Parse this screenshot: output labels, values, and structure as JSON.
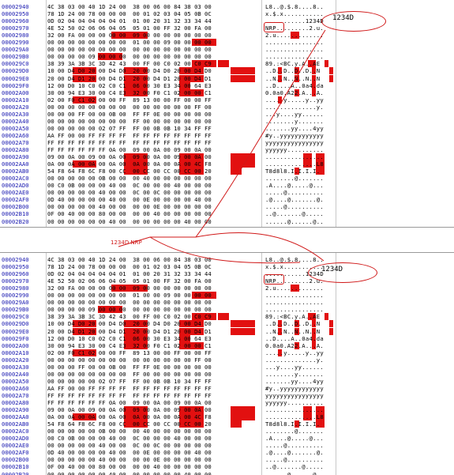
{
  "annotations": {
    "ellipse_text": "1234D",
    "box_text": "NRP",
    "middle_label": "1234D NRP"
  },
  "colors": {
    "highlight": "#e21010",
    "address": "#1a1ab0",
    "annotation": "#d01818"
  },
  "panels": [
    {
      "rows": [
        {
          "addr": "00002940",
          "hex": "4C 38 03 00 40 1D 24 00  38 00 06 00 84 38 03 00",
          "ascii": "L8..@.$.8....8.."
        },
        {
          "addr": "00002950",
          "hex": "78 1D 24 00 78 00 00 00  00 01 02 03 04 05 0B 0C",
          "ascii": "x.$.x..........."
        },
        {
          "addr": "00002960",
          "hex": "0D 02 04 04 04 04 04 01  01 00 20 31 32 33 34 44",
          "ascii": "...........1234D"
        },
        {
          "addr": "00002970",
          "hex": "4E 52 50 02 06 06 04 05  05 01 00 FF 32 00 FA 00",
          "ascii": "NRP.........2.u."
        },
        {
          "addr": "00002980",
          "hex": "32 00 FA 00 00 00 00 00  09 00 00 00 00 00 00 00",
          "ascii": "2.u............."
        },
        {
          "addr": "00002990",
          "hex": "00 00 00 00 00 00 00 00  01 00 00 09 00 00 00 00",
          "ascii": "................"
        },
        {
          "addr": "000029A0",
          "hex": "00 00 00 00 00 00 00 00  00 00 00 00 00 00 00 00",
          "ascii": "................"
        },
        {
          "addr": "000029B0",
          "hex": "00 00 00 00 09 00 00 00  00 00 00 00 00 00 00 00",
          "ascii": "................"
        },
        {
          "addr": "000029C0",
          "hex": "38 39 3A 3B 3C 3D 42 43  00 FF 00 C0 02 00 C0 C9",
          "ascii": "89.:<BC.y.A..AE"
        },
        {
          "addr": "000029D0",
          "hex": "10 00 D4 D0 20 00 D4 D0  20 00 D4 D0 20 00 D4 D0",
          "ascii": "..D..D..D..D..N"
        },
        {
          "addr": "000029E0",
          "hex": "20 00 D4 D1 20 00 D4 D1  20 00 D4 D1 20 00 D4 D1",
          "ascii": "..N..N..N..N..N"
        },
        {
          "addr": "000029F0",
          "hex": "12 00 D0 10 C0 02 C0 C1  06 00 30 E3 34 00 64 E3",
          "ascii": "..D....A..0a4.da"
        },
        {
          "addr": "00002A00",
          "hex": "30 00 94 E3 30 00 C4 E3  32 00 F0 C1 02 00 00 C1",
          "ascii": "0.0a0.A22.A...A."
        },
        {
          "addr": "00002A10",
          "hex": "02 00 F0 C1 02 00 00 FF  89 13 00 00 FF 00 00 FF",
          "ascii": ".....y.....y..yy"
        },
        {
          "addr": "00002A20",
          "hex": "00 00 00 00 00 00 00 00  00 00 00 00 00 00 FF 00",
          "ascii": "..............y."
        },
        {
          "addr": "00002A30",
          "hex": "00 00 00 FF 00 00 0B 00  FF FF 0E 00 00 00 00 00",
          "ascii": "...y....yy......"
        },
        {
          "addr": "00002A40",
          "hex": "00 00 00 00 00 00 00 00  FF 00 00 00 00 00 00 00",
          "ascii": "........y......."
        },
        {
          "addr": "00002A50",
          "hex": "00 00 00 00 00 02 07 FF  FF 00 0B 0B 10 34 FF FF",
          "ascii": ".......yy....4yy"
        },
        {
          "addr": "00002A60",
          "hex": "AA FF 00 00 FF FF FF FF  FF FF FF FF FF FF FF FF",
          "ascii": "#y..yyyyyyyyyyyy"
        },
        {
          "addr": "00002A70",
          "hex": "FF FF FF FF FF FF FF FF  FF FF FF FF FF FF FF FF",
          "ascii": "yyyyyyyyyyyyyyyy"
        },
        {
          "addr": "00002A80",
          "hex": "FF FF FF FF FF FF 0A 00  09 00 0A 00 09 00 0A 00",
          "ascii": "yyyyyy.........."
        },
        {
          "addr": "00002A90",
          "hex": "09 00 0A 00 09 00 0A 00  09 00 0A 00 09 00 0A 00",
          "ascii": "................"
        },
        {
          "addr": "00002AA0",
          "hex": "0A 00 0A 00 0A 00 0A 00  0A 00 0A 00 0A 00 4C F8",
          "ascii": "..............L8"
        },
        {
          "addr": "00002AB0",
          "hex": "54 F8 64 F8 6C F8 00 CC  00 CC 00 CC 00 CC 00 20",
          "ascii": "T8d8l8.I.I.I.I. "
        },
        {
          "addr": "00002AC0",
          "hex": "00 00 00 00 00 0B 00 00  00 40 00 00 00 00 00 00",
          "ascii": "........@......."
        },
        {
          "addr": "00002AD0",
          "hex": "00 C0 0B 00 00 00 40 00  0C 00 00 00 40 00 00 00",
          "ascii": ".A....@.....@..."
        },
        {
          "addr": "00002AE0",
          "hex": "00 00 00 00 00 40 00 00  0C 00 0C 00 00 00 00 00",
          "ascii": ".....@.........."
        },
        {
          "addr": "00002AF0",
          "hex": "0D 40 00 00 00 00 40 00  00 0E 00 00 00 00 40 00",
          "ascii": ".@....@.......@."
        },
        {
          "addr": "00002B00",
          "hex": "00 00 00 00 00 40 00 00  00 00 0E 00 00 00 00 00",
          "ascii": ".....@.........."
        },
        {
          "addr": "00002B10",
          "hex": "0F 00 40 00 00 80 00 00  00 00 40 00 00 00 00 00",
          "ascii": "..@.......@....."
        },
        {
          "addr": "00002B20",
          "hex": "00 00 00 00 00 00 40 00  00 00 00 00 00 40 00 00",
          "ascii": "......@......@.."
        }
      ]
    },
    {
      "rows": [
        {
          "addr": "00002940",
          "hex": "4C 38 03 00 40 1D 24 00  38 00 06 00 84 38 03 00",
          "ascii": "L8..@.$.8....8.."
        },
        {
          "addr": "00002950",
          "hex": "78 1D 24 00 78 00 00 00  00 01 02 03 04 05 0B 0C",
          "ascii": "x.$.x..........."
        },
        {
          "addr": "00002960",
          "hex": "0D 02 04 04 04 04 04 01  01 00 20 31 32 33 34 44",
          "ascii": "...........1234D"
        },
        {
          "addr": "00002970",
          "hex": "4E 52 50 02 06 06 04 05  05 01 00 FF 32 00 FA 00",
          "ascii": "NRP.........2.u."
        },
        {
          "addr": "00002980",
          "hex": "32 00 FA 00 00 00 00 00  09 00 00 00 00 00 00 00",
          "ascii": "2.u............."
        },
        {
          "addr": "00002990",
          "hex": "00 00 00 00 00 00 00 00  01 00 00 09 00 00 00 00",
          "ascii": "................"
        },
        {
          "addr": "000029A0",
          "hex": "00 00 00 00 00 00 00 00  00 00 00 00 00 00 00 00",
          "ascii": "................"
        },
        {
          "addr": "000029B0",
          "hex": "00 00 00 00 09 00 00 00  00 00 00 00 00 00 00 00",
          "ascii": "................"
        },
        {
          "addr": "000029C0",
          "hex": "38 39 3A 3B 3C 3D 42 43  00 FF 00 C0 02 00 C0 C9",
          "ascii": "89.:<BC.y.A..AE"
        },
        {
          "addr": "000029D0",
          "hex": "10 00 D4 D0 20 00 D4 D0  20 00 D4 D0 20 00 D4 D0",
          "ascii": "..D..D..D..D..N"
        },
        {
          "addr": "000029E0",
          "hex": "20 00 D4 D1 20 00 D4 D1  20 00 D4 D1 20 00 D4 D1",
          "ascii": "..N..N..N..N..N"
        },
        {
          "addr": "000029F0",
          "hex": "12 00 D0 10 C0 02 C0 C1  06 00 30 E3 34 00 64 E3",
          "ascii": "..D....A..0a4.da"
        },
        {
          "addr": "00002A00",
          "hex": "30 00 94 E3 30 00 C4 E3  32 00 F0 C1 02 00 00 C1",
          "ascii": "0.0a0.A22.A...A."
        },
        {
          "addr": "00002A10",
          "hex": "02 00 F0 C1 02 00 00 FF  89 13 00 00 FF 00 00 FF",
          "ascii": ".....y.....y..yy"
        },
        {
          "addr": "00002A20",
          "hex": "00 00 00 00 00 00 00 00  00 00 00 00 00 00 FF 00",
          "ascii": "..............y."
        },
        {
          "addr": "00002A30",
          "hex": "00 00 00 FF 00 00 0B 00  FF FF 0E 00 00 00 00 00",
          "ascii": "...y....yy......"
        },
        {
          "addr": "00002A40",
          "hex": "00 00 00 00 00 00 00 00  FF 00 00 00 00 00 00 00",
          "ascii": "........y......."
        },
        {
          "addr": "00002A50",
          "hex": "00 00 00 00 00 02 07 FF  FF 00 0B 0B 10 34 FF FF",
          "ascii": ".......yy....4yy"
        },
        {
          "addr": "00002A60",
          "hex": "AA FF 00 00 FF FF FF FF  FF FF FF FF FF FF FF FF",
          "ascii": "#y..yyyyyyyyyyyy"
        },
        {
          "addr": "00002A70",
          "hex": "FF FF FF FF FF FF FF FF  FF FF FF FF FF FF FF FF",
          "ascii": "yyyyyyyyyyyyyyyy"
        },
        {
          "addr": "00002A80",
          "hex": "FF FF FF FF FF FF 0A 00  09 00 0A 00 09 00 0A 00",
          "ascii": "yyyyyy.........."
        },
        {
          "addr": "00002A90",
          "hex": "09 00 0A 00 09 00 0A 00  09 00 0A 00 09 00 0A 00",
          "ascii": "................"
        },
        {
          "addr": "00002AA0",
          "hex": "0A 00 0A 00 0A 00 0A 00  0A 00 0A 00 0A 00 4C F8",
          "ascii": "..............L8"
        },
        {
          "addr": "00002AB0",
          "hex": "54 F8 64 F8 6C F8 00 CC  00 CC 00 CC 00 CC 00 20",
          "ascii": "T8d8l8.I.I.I.I. "
        },
        {
          "addr": "00002AC0",
          "hex": "00 00 00 00 00 0B 00 00  00 40 00 00 00 00 00 00",
          "ascii": "........@......."
        },
        {
          "addr": "00002AD0",
          "hex": "00 C0 0B 00 00 00 40 00  0C 00 00 00 40 00 00 00",
          "ascii": ".A....@.....@..."
        },
        {
          "addr": "00002AE0",
          "hex": "00 00 00 00 00 40 00 00  0C 00 0C 00 00 00 00 00",
          "ascii": ".....@.........."
        },
        {
          "addr": "00002AF0",
          "hex": "0D 40 00 00 00 00 40 00  00 0E 00 00 00 00 40 00",
          "ascii": ".@....@.......@."
        },
        {
          "addr": "00002B00",
          "hex": "00 00 00 00 00 40 00 00  00 00 0E 00 00 00 00 00",
          "ascii": ".....@.........."
        },
        {
          "addr": "00002B10",
          "hex": "0F 00 40 00 00 80 00 00  00 00 40 00 00 00 00 00",
          "ascii": "..@.......@....."
        },
        {
          "addr": "00002B20",
          "hex": "00 00 00 00 00 00 40 00  00 00 00 00 00 40 00 00",
          "ascii": "......@......@.."
        }
      ]
    }
  ]
}
